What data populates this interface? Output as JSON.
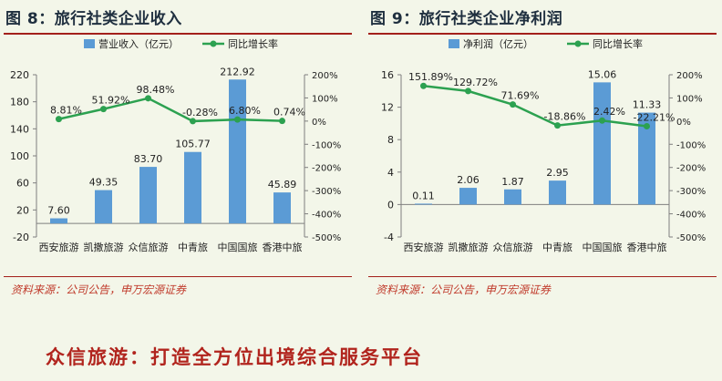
{
  "colors": {
    "bar": "#5b9bd5",
    "line": "#2ca150",
    "title_rule": "#a3201b",
    "source_text": "#c03a2b",
    "heading": "#b1241d"
  },
  "left": {
    "fig_num": "图 8",
    "sep": "：",
    "title": "旅行社类企业收入",
    "source": "资料来源：公司公告，申万宏源证券"
  },
  "right": {
    "fig_num": "图 9",
    "sep": "：",
    "title": "旅行社类企业净利润",
    "source": "资料来源：公司公告，申万宏源证券"
  },
  "bottom_heading": "众信旅游：打造全方位出境综合服务平台",
  "chart_data": [
    {
      "type": "bar",
      "categories": [
        "西安旅游",
        "凯撒旅游",
        "众信旅游",
        "中青旅",
        "中国国旅",
        "香港中旅"
      ],
      "series": [
        {
          "name": "营业收入（亿元）",
          "type": "bar",
          "axis": "left",
          "values": [
            7.6,
            49.35,
            83.7,
            105.77,
            212.92,
            45.89
          ],
          "labels": [
            "7.60",
            "49.35",
            "83.70",
            "105.77",
            "212.92",
            "45.89"
          ]
        },
        {
          "name": "同比增长率",
          "type": "line",
          "axis": "right",
          "values": [
            8.81,
            51.92,
            98.48,
            -0.28,
            6.8,
            0.74
          ],
          "labels": [
            "8.81%",
            "51.92%",
            "98.48%",
            "-0.28%",
            "6.80%",
            "0.74%"
          ]
        }
      ],
      "ylim": [
        -20,
        220
      ],
      "yticks": [
        "-20",
        "20",
        "60",
        "100",
        "140",
        "180",
        "220"
      ],
      "ylim_right": [
        -500,
        200
      ],
      "yticks_right": [
        "-500%",
        "-400%",
        "-300%",
        "-200%",
        "-100%",
        "0%",
        "100%",
        "200%"
      ],
      "legend": "top"
    },
    {
      "type": "bar",
      "categories": [
        "西安旅游",
        "凯撒旅游",
        "众信旅游",
        "中青旅",
        "中国国旅",
        "香港中旅"
      ],
      "series": [
        {
          "name": "净利润（亿元）",
          "type": "bar",
          "axis": "left",
          "values": [
            0.11,
            2.06,
            1.87,
            2.95,
            15.06,
            11.33
          ],
          "labels": [
            "0.11",
            "2.06",
            "1.87",
            "2.95",
            "15.06",
            "11.33"
          ]
        },
        {
          "name": "同比增长率",
          "type": "line",
          "axis": "right",
          "values": [
            151.89,
            129.72,
            71.69,
            -18.86,
            2.42,
            -22.21
          ],
          "labels": [
            "151.89%",
            "129.72%",
            "71.69%",
            "-18.86%",
            "2.42%",
            "-22.21%"
          ]
        }
      ],
      "ylim": [
        -4,
        16
      ],
      "yticks": [
        "-4",
        "0",
        "4",
        "8",
        "12",
        "16"
      ],
      "ylim_right": [
        -500,
        200
      ],
      "yticks_right": [
        "-500%",
        "-400%",
        "-300%",
        "-200%",
        "-100%",
        "0%",
        "100%",
        "200%"
      ],
      "legend": "top"
    }
  ]
}
